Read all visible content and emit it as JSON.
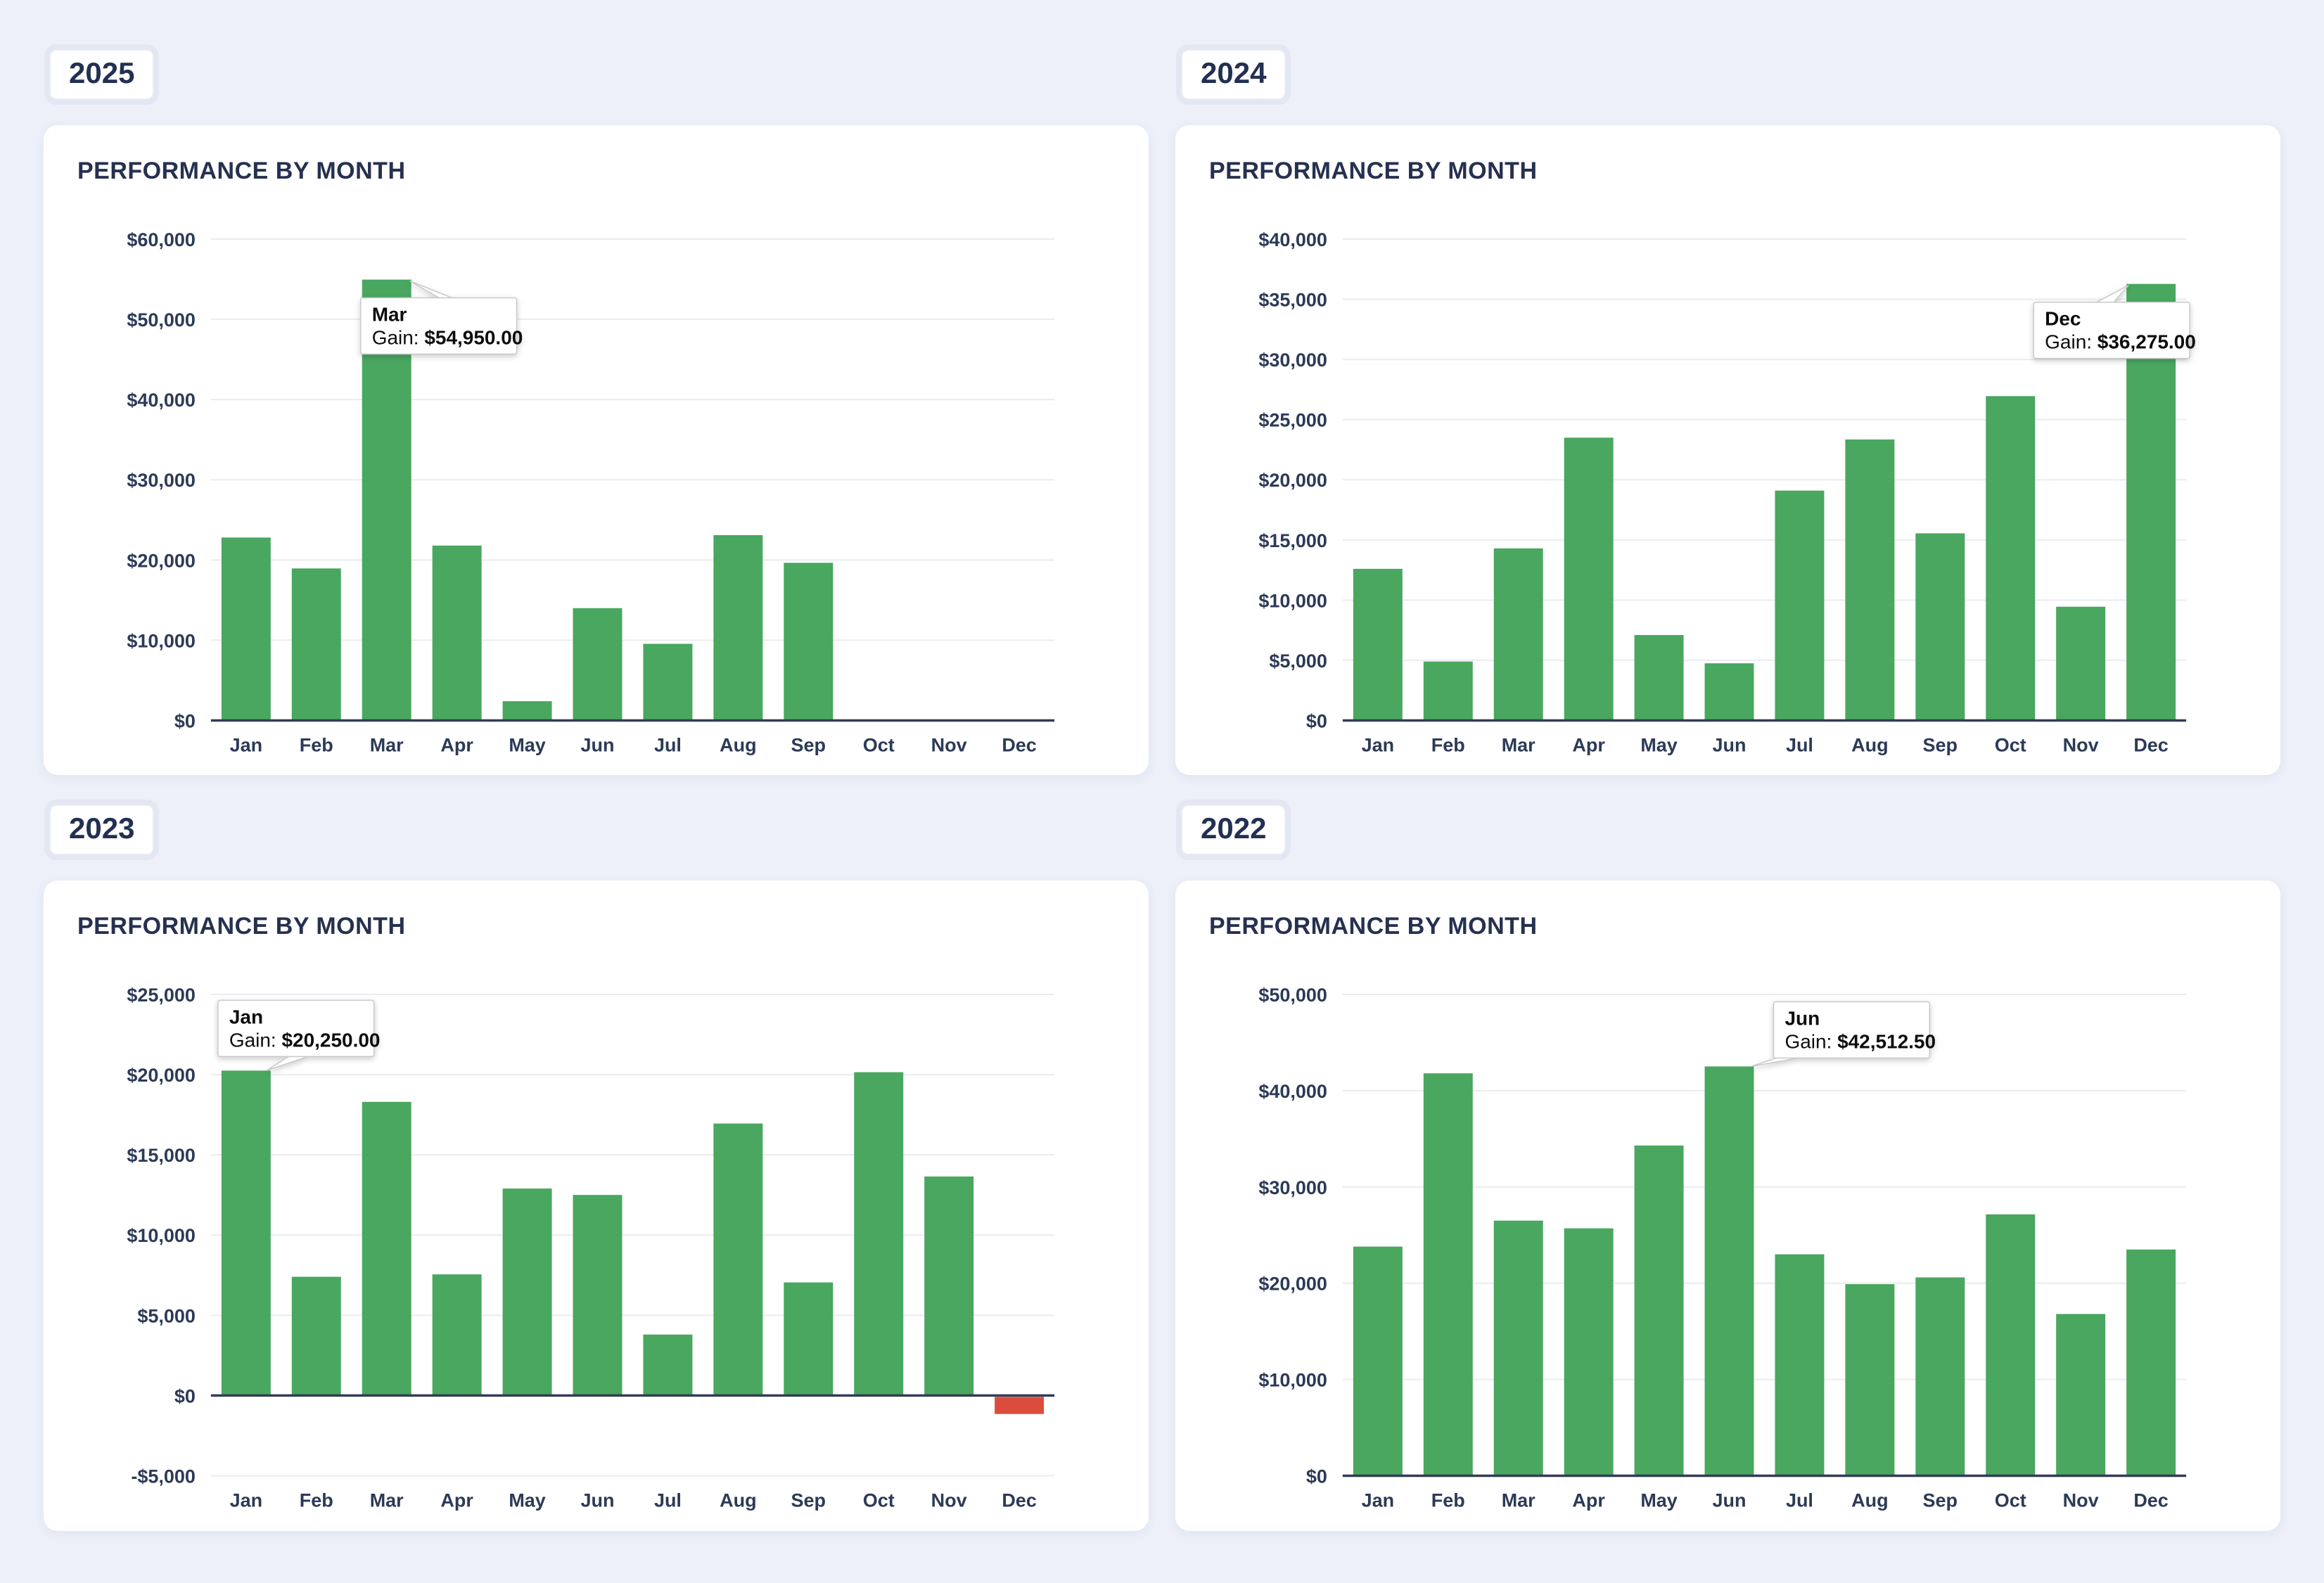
{
  "page": {
    "background": "#edf0f9"
  },
  "colors": {
    "bar_positive": "#49a75f",
    "bar_negative": "#dc4c3c",
    "axis_line": "#343b55",
    "gridline": "#ebebf1",
    "tick_label": "#2c3a57",
    "card_title": "#263150",
    "tooltip_border": "#c9c9cd",
    "tooltip_bg": "#ffffff"
  },
  "chart_data": [
    {
      "type": "bar",
      "year_label": "2025",
      "title": "PERFORMANCE BY MONTH",
      "xlabel": "",
      "ylabel": "",
      "grid": true,
      "categories": [
        "Jan",
        "Feb",
        "Mar",
        "Apr",
        "May",
        "Jun",
        "Jul",
        "Aug",
        "Sep",
        "Oct",
        "Nov",
        "Dec"
      ],
      "values": [
        22800,
        18950,
        54950,
        21800,
        2400,
        14000,
        9550,
        23100,
        19650,
        0,
        0,
        0
      ],
      "ylim": [
        0,
        60000
      ],
      "y_step": 10000,
      "tooltip": {
        "month": "Mar",
        "index": 2,
        "prefix": "Gain:",
        "value": "$54,950.00",
        "placement": "below-right"
      }
    },
    {
      "type": "bar",
      "year_label": "2024",
      "title": "PERFORMANCE BY MONTH",
      "xlabel": "",
      "ylabel": "",
      "grid": true,
      "categories": [
        "Jan",
        "Feb",
        "Mar",
        "Apr",
        "May",
        "Jun",
        "Jul",
        "Aug",
        "Sep",
        "Oct",
        "Nov",
        "Dec"
      ],
      "values": [
        12600,
        4900,
        14300,
        23500,
        7100,
        4750,
        19100,
        23350,
        15550,
        26950,
        9450,
        36275
      ],
      "ylim": [
        0,
        40000
      ],
      "y_step": 5000,
      "tooltip": {
        "month": "Dec",
        "index": 11,
        "prefix": "Gain:",
        "value": "$36,275.00",
        "placement": "below-left"
      }
    },
    {
      "type": "bar",
      "year_label": "2023",
      "title": "PERFORMANCE BY MONTH",
      "xlabel": "",
      "ylabel": "",
      "grid": true,
      "categories": [
        "Jan",
        "Feb",
        "Mar",
        "Apr",
        "May",
        "Jun",
        "Jul",
        "Aug",
        "Sep",
        "Oct",
        "Nov",
        "Dec"
      ],
      "values": [
        20250,
        7400,
        18300,
        7550,
        12900,
        12500,
        3800,
        16950,
        7050,
        20150,
        13650,
        -1150
      ],
      "ylim": [
        -5000,
        25000
      ],
      "y_step": 5000,
      "tooltip": {
        "month": "Jan",
        "index": 0,
        "prefix": "Gain:",
        "value": "$20,250.00",
        "placement": "above-left"
      }
    },
    {
      "type": "bar",
      "year_label": "2022",
      "title": "PERFORMANCE BY MONTH",
      "xlabel": "",
      "ylabel": "",
      "grid": true,
      "categories": [
        "Jan",
        "Feb",
        "Mar",
        "Apr",
        "May",
        "Jun",
        "Jul",
        "Aug",
        "Sep",
        "Oct",
        "Nov",
        "Dec"
      ],
      "values": [
        23800,
        41800,
        26500,
        25700,
        34300,
        42512.5,
        23000,
        19900,
        20600,
        27150,
        16800,
        23500
      ],
      "ylim": [
        0,
        50000
      ],
      "y_step": 10000,
      "tooltip": {
        "month": "Jun",
        "index": 5,
        "prefix": "Gain:",
        "value": "$42,512.50",
        "placement": "above-right"
      }
    }
  ]
}
